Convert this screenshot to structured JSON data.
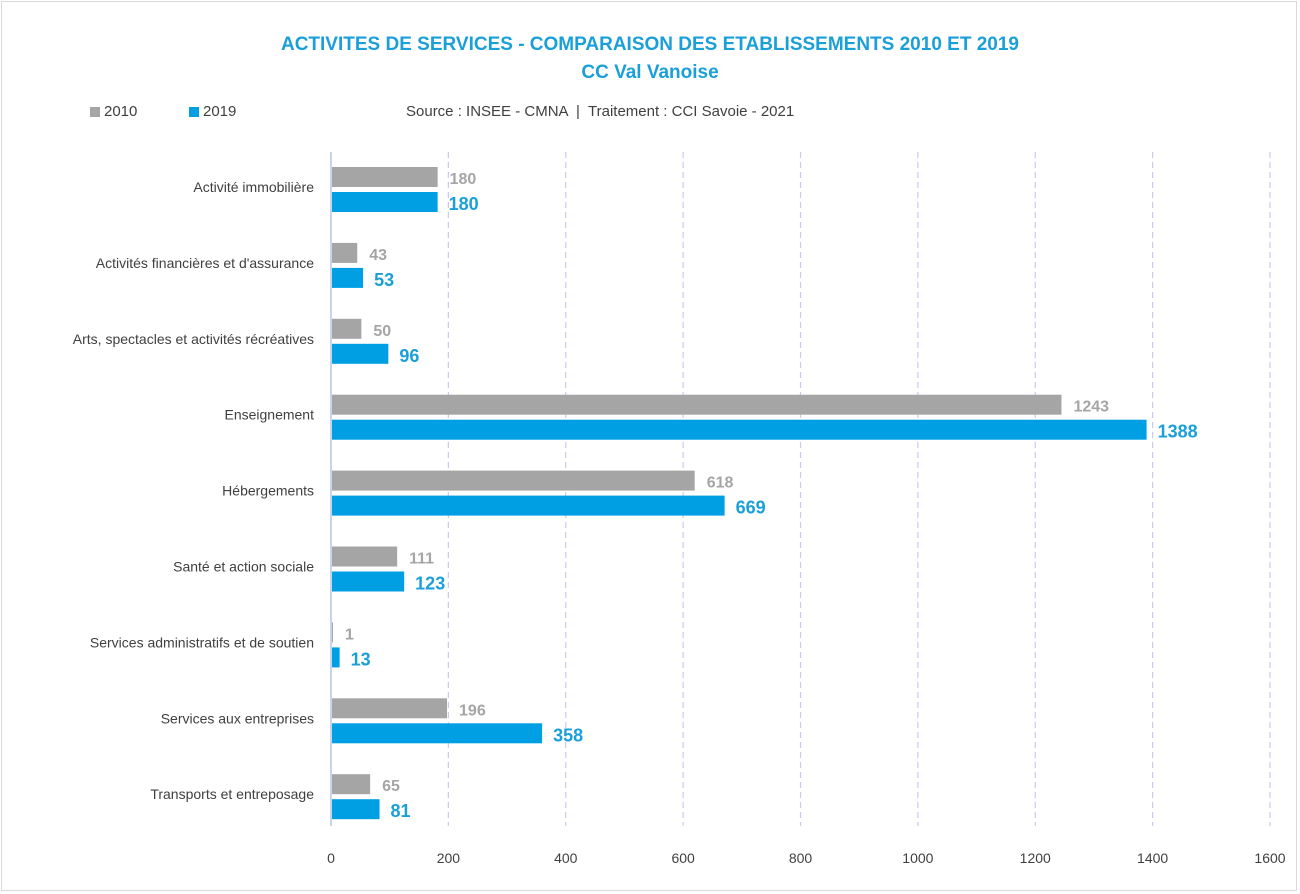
{
  "colors": {
    "series_2010": "#a5a5a5",
    "series_2019": "#009fe3",
    "title": "#1a9fd9",
    "grid": "#c9c9f0",
    "axis": "#b4c7e7"
  },
  "chart_data": {
    "type": "bar",
    "orientation": "horizontal",
    "title": "ACTIVITES DE SERVICES - COMPARAISON DES ETABLISSEMENTS 2010 ET 2019",
    "subtitle": "CC Val Vanoise",
    "source": "Source : INSEE - CMNA  |  Traitement : CCI Savoie - 2021",
    "categories": [
      "Activité immobilière",
      "Activités financières et d'assurance",
      "Arts, spectacles et activités récréatives",
      "Enseignement",
      "Hébergements",
      "Santé et action sociale",
      "Services administratifs et de soutien",
      "Services aux entreprises",
      "Transports et entreposage"
    ],
    "series": [
      {
        "name": "2010",
        "values": [
          180,
          43,
          50,
          1243,
          618,
          111,
          1,
          196,
          65
        ]
      },
      {
        "name": "2019",
        "values": [
          180,
          53,
          96,
          1388,
          669,
          123,
          13,
          358,
          81
        ]
      }
    ],
    "xlim": [
      0,
      1600
    ],
    "xticks": [
      0,
      200,
      400,
      600,
      800,
      1000,
      1200,
      1400,
      1600
    ],
    "grid": "vertical dashed",
    "legend_position": "top-left",
    "xlabel": "",
    "ylabel": ""
  }
}
